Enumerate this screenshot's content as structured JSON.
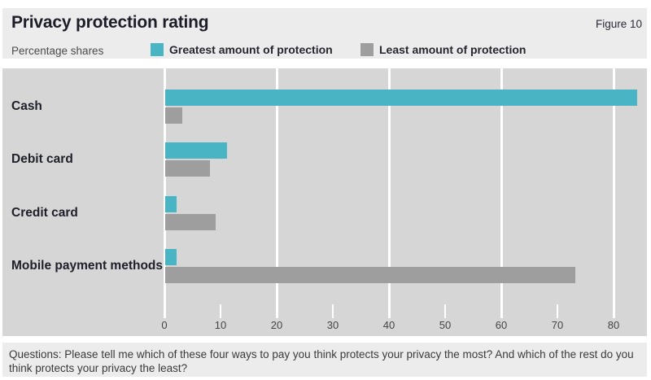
{
  "header": {
    "title": "Privacy protection rating",
    "figure_label": "Figure 10",
    "subtitle": "Percentage shares"
  },
  "chart_data": {
    "type": "bar",
    "orientation": "horizontal",
    "title": "Privacy protection rating",
    "unit_label": "Percentage shares",
    "categories": [
      "Cash",
      "Debit card",
      "Credit card",
      "Mobile payment methods"
    ],
    "series": [
      {
        "name": "Greatest amount of protection",
        "color": "#49b4c3",
        "values": [
          84,
          11,
          2,
          2
        ]
      },
      {
        "name": "Least amount of protection",
        "color": "#9e9e9e",
        "values": [
          3,
          8,
          9,
          73
        ]
      }
    ],
    "xlim": [
      0,
      86
    ],
    "xticks": [
      0,
      10,
      20,
      30,
      40,
      50,
      60,
      70,
      80
    ],
    "gridlines_at": [
      0,
      20,
      40,
      60,
      80
    ],
    "grid": true,
    "legend_position": "top"
  },
  "footer": {
    "question": "Questions: Please tell me which of these four ways to pay you think protects your privacy the most? And which of the rest do you think protects your privacy the least?"
  },
  "colors": {
    "teal": "#49b4c3",
    "gray": "#9e9e9e",
    "chart_background": "#d6d6d6",
    "band_background": "#ececec",
    "gridline": "#ffffff"
  }
}
